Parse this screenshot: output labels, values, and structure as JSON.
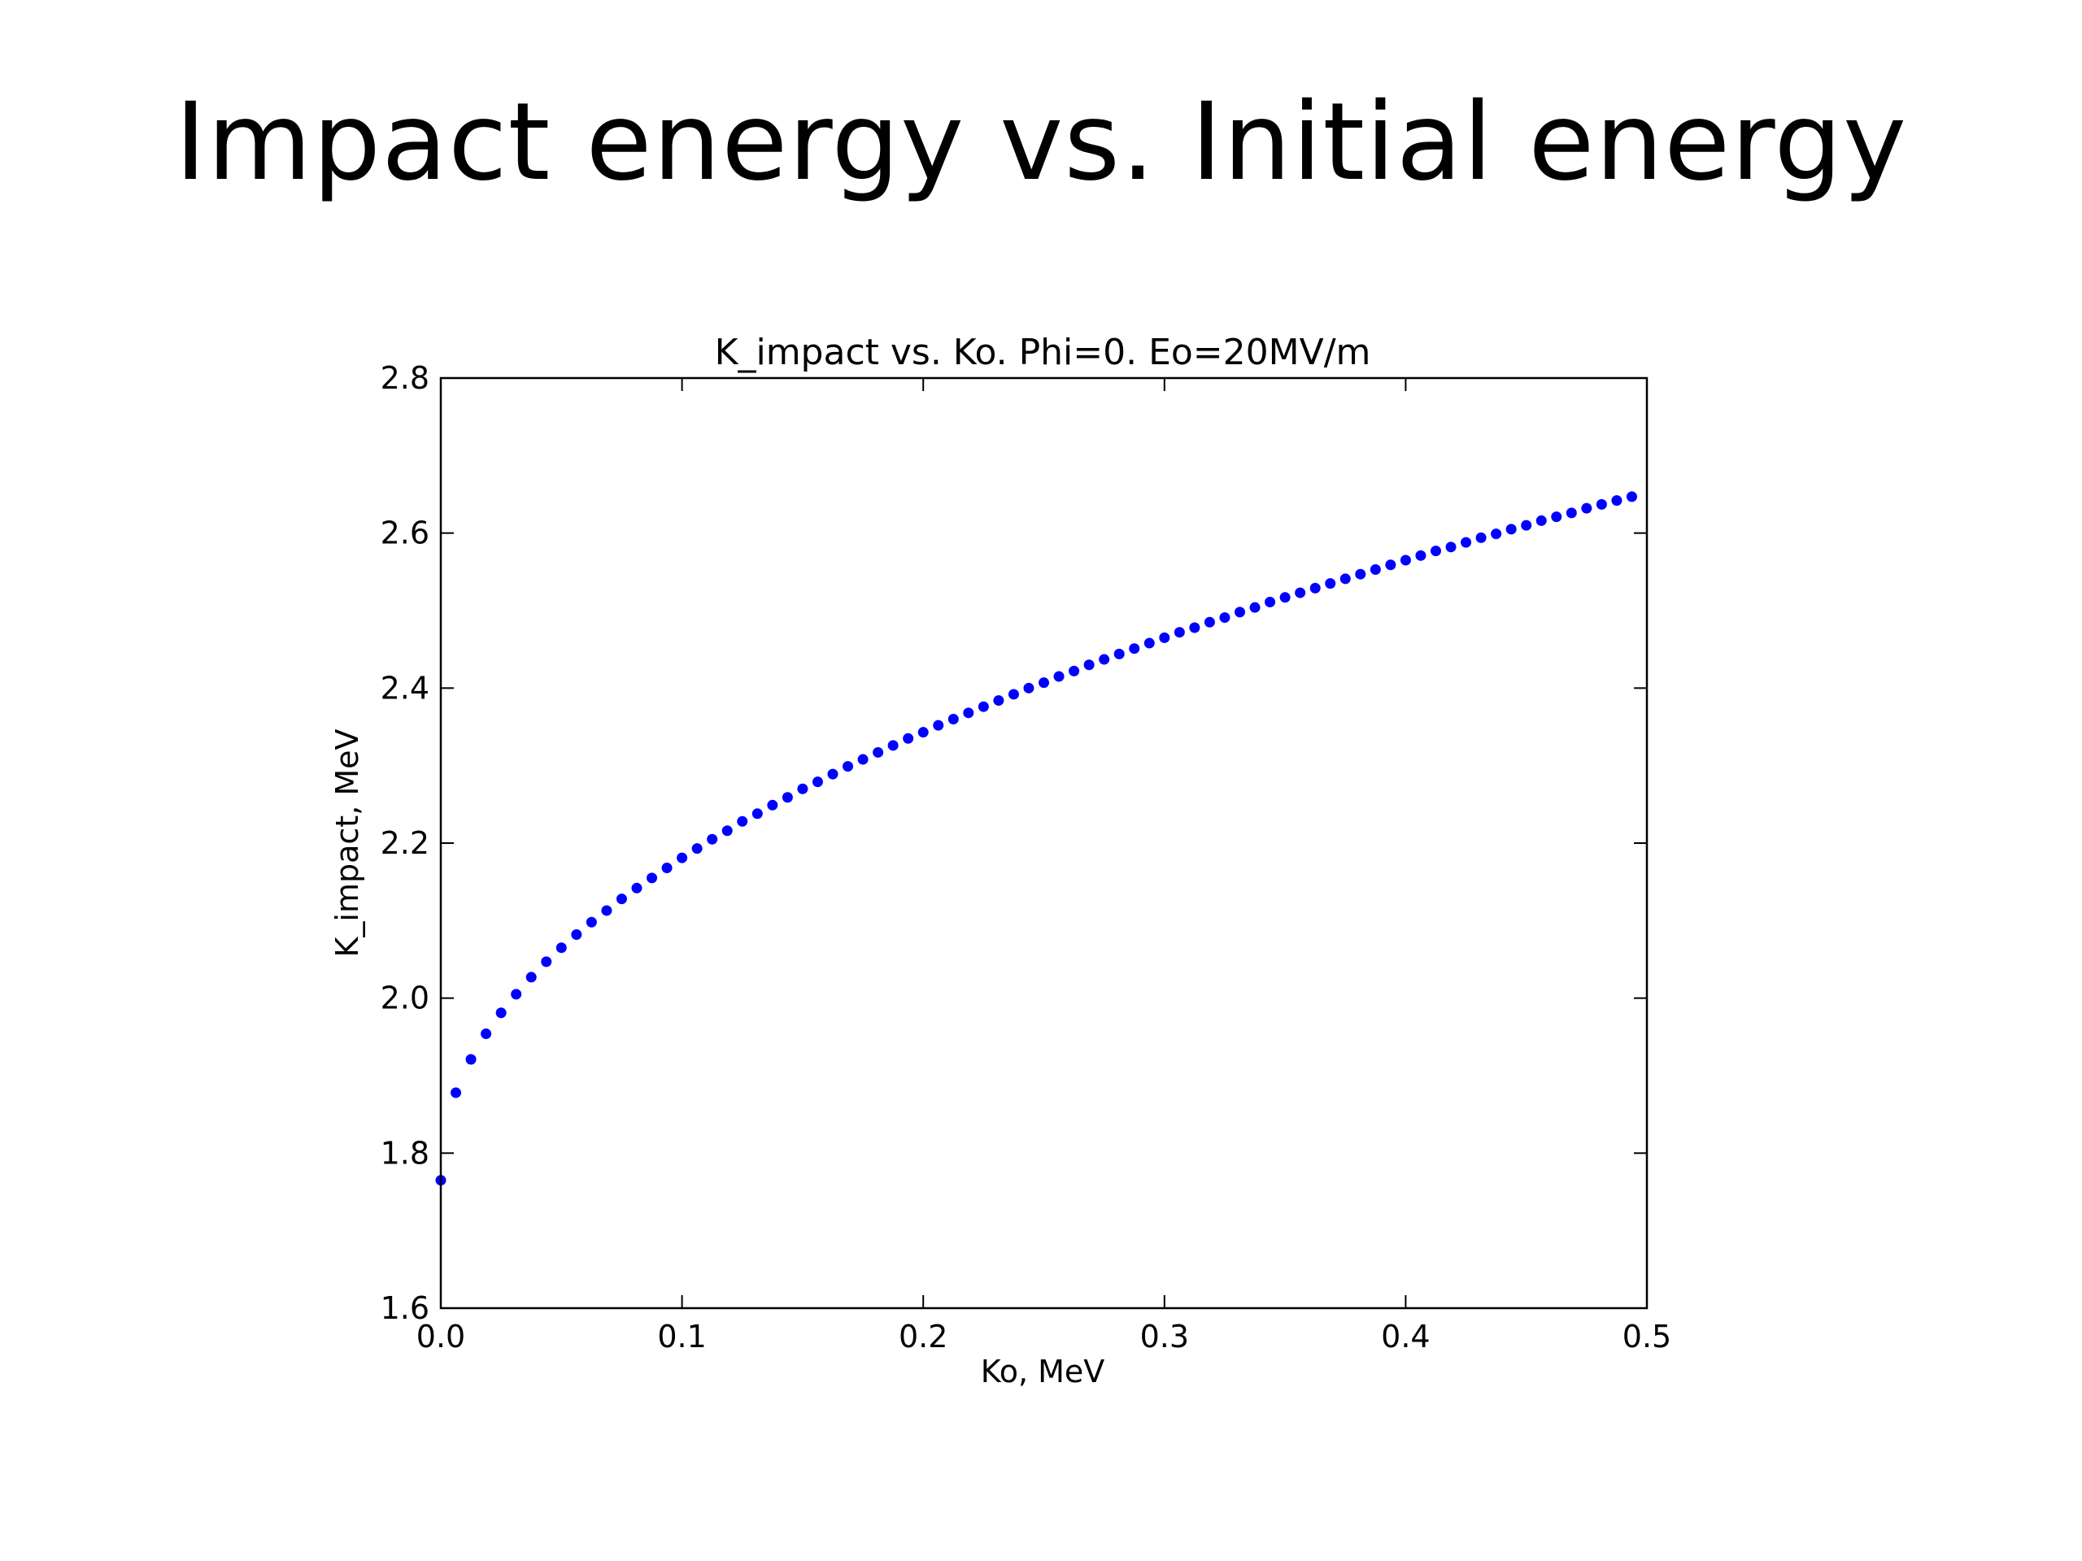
{
  "slide": {
    "title": "Impact energy vs. Initial energy"
  },
  "chart_data": {
    "type": "scatter",
    "title": "K_impact vs. Ko.  Phi=0. Eo=20MV/m",
    "xlabel": "Ko, MeV",
    "ylabel": "K_impact, MeV",
    "xlim": [
      0.0,
      0.5
    ],
    "ylim": [
      1.6,
      2.8
    ],
    "xticks": [
      "0.0",
      "0.1",
      "0.2",
      "0.3",
      "0.4",
      "0.5"
    ],
    "yticks": [
      "1.6",
      "1.8",
      "2.0",
      "2.2",
      "2.4",
      "2.6",
      "2.8"
    ],
    "grid": false,
    "legend": "none",
    "marker_color": "#0000ff",
    "series": [
      {
        "x": [
          0.0,
          0.00625,
          0.0125,
          0.01875,
          0.025,
          0.03125,
          0.0375,
          0.04375,
          0.05,
          0.05625,
          0.0625,
          0.06875,
          0.075,
          0.08125,
          0.0875,
          0.09375,
          0.1,
          0.10625,
          0.1125,
          0.11875,
          0.125,
          0.13125,
          0.1375,
          0.14375,
          0.15,
          0.15625,
          0.1625,
          0.16875,
          0.175,
          0.18125,
          0.1875,
          0.19375,
          0.2,
          0.20625,
          0.2125,
          0.21875,
          0.225,
          0.23125,
          0.2375,
          0.24375,
          0.25,
          0.25625,
          0.2625,
          0.26875,
          0.275,
          0.28125,
          0.2875,
          0.29375,
          0.3,
          0.30625,
          0.3125,
          0.31875,
          0.325,
          0.33125,
          0.3375,
          0.34375,
          0.35,
          0.35625,
          0.3625,
          0.36875,
          0.375,
          0.38125,
          0.3875,
          0.39375,
          0.4,
          0.40625,
          0.4125,
          0.41875,
          0.425,
          0.43125,
          0.4375,
          0.44375,
          0.45,
          0.45625,
          0.4625,
          0.46875,
          0.475,
          0.48125,
          0.4875,
          0.49375
        ],
        "y": [
          1.765,
          1.878,
          1.921,
          1.954,
          1.981,
          2.005,
          2.027,
          2.047,
          2.065,
          2.082,
          2.098,
          2.113,
          2.128,
          2.142,
          2.155,
          2.168,
          2.181,
          2.193,
          2.205,
          2.216,
          2.228,
          2.238,
          2.249,
          2.259,
          2.27,
          2.279,
          2.289,
          2.299,
          2.308,
          2.317,
          2.326,
          2.335,
          2.343,
          2.352,
          2.36,
          2.368,
          2.376,
          2.384,
          2.392,
          2.4,
          2.407,
          2.415,
          2.422,
          2.43,
          2.437,
          2.444,
          2.451,
          2.458,
          2.465,
          2.472,
          2.478,
          2.485,
          2.491,
          2.498,
          2.504,
          2.511,
          2.517,
          2.523,
          2.529,
          2.535,
          2.541,
          2.547,
          2.553,
          2.559,
          2.565,
          2.571,
          2.577,
          2.582,
          2.588,
          2.594,
          2.599,
          2.605,
          2.61,
          2.616,
          2.621,
          2.626,
          2.632,
          2.637,
          2.642,
          2.647
        ]
      }
    ]
  }
}
